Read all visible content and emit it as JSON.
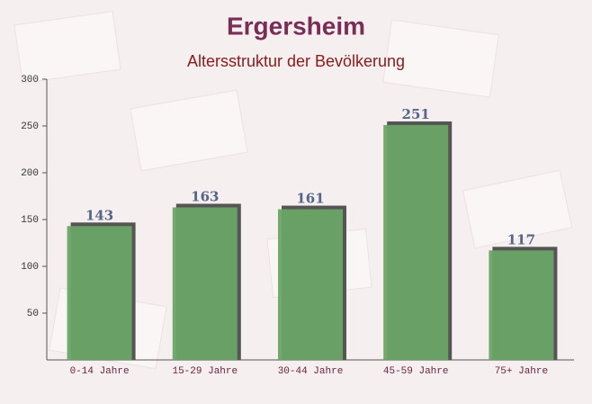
{
  "chart_data": {
    "type": "bar",
    "title": "Ergersheim",
    "subtitle": "Altersstruktur der Bevölkerung",
    "categories": [
      "0-14 Jahre",
      "15-29 Jahre",
      "30-44 Jahre",
      "45-59 Jahre",
      "75+ Jahre"
    ],
    "values": [
      143,
      163,
      161,
      251,
      117
    ],
    "color": "#6aa466",
    "ylim": [
      0,
      300
    ],
    "yticks": [
      50,
      100,
      150,
      200,
      250,
      300
    ]
  }
}
